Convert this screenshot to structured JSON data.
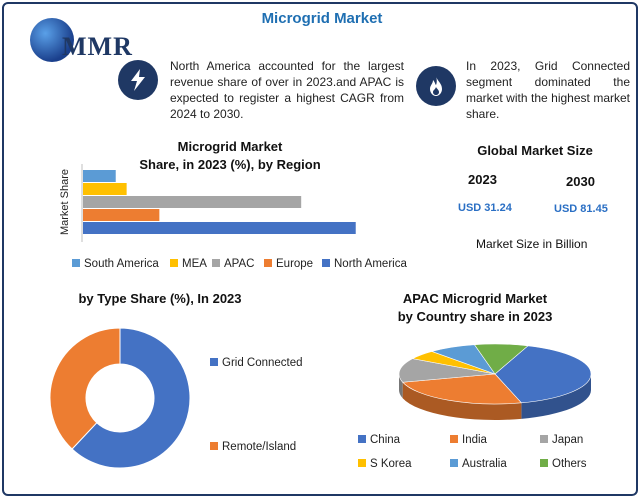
{
  "header": {
    "title": "Microgrid Market",
    "logo_text": "MMR"
  },
  "notes": {
    "left": "North America accounted for the largest revenue share of over in 2023.and APAC is expected to register a highest CAGR from 2024 to 2030.",
    "right": "In 2023, Grid Connected segment dominated the market with the highest market share.",
    "left_icon": "lightning-icon",
    "right_icon": "flame-icon"
  },
  "global_market_size": {
    "title": "Global Market Size",
    "year_1": "2023",
    "year_2": "2030",
    "value_1": "USD 31.24",
    "value_2": "USD 81.45",
    "note": "Market Size in Billion"
  },
  "colors": {
    "blue": "#4472c4",
    "orange": "#ed7d31",
    "gray": "#a5a5a5",
    "yellow": "#ffc000",
    "lightblue": "#5b9bd5",
    "green": "#70ad47",
    "navy": "#1f3864",
    "title_blue": "#1f6fb2"
  },
  "chart_data": [
    {
      "type": "bar",
      "orientation": "horizontal",
      "title": "Microgrid Market Share, in 2023 (%), by Region",
      "title_line1": "Microgrid Market",
      "title_line2": "Share, in 2023 (%), by Region",
      "ylabel": "Market Share",
      "categories": [
        "South America",
        "MEA",
        "APAC",
        "Europe",
        "North America"
      ],
      "values": [
        6,
        8,
        40,
        14,
        50
      ],
      "colors": [
        "#5b9bd5",
        "#ffc000",
        "#a5a5a5",
        "#ed7d31",
        "#4472c4"
      ],
      "xlim": [
        0,
        55
      ],
      "legend_position": "bottom",
      "legend": [
        "South America",
        "MEA",
        "APAC",
        "Europe",
        "North America"
      ]
    },
    {
      "type": "pie",
      "subtype": "donut",
      "title": "by Type Share (%), In 2023",
      "categories": [
        "Grid Connected",
        "Remote/Island"
      ],
      "values": [
        62,
        38
      ],
      "colors": [
        "#4472c4",
        "#ed7d31"
      ],
      "legend_position": "right"
    },
    {
      "type": "pie",
      "subtype": "3d",
      "title": "APAC Microgrid Market by Country share in 2023",
      "title_line1": "APAC Microgrid Market",
      "title_line2": "by Country share in 2023",
      "categories": [
        "China",
        "India",
        "Japan",
        "S Korea",
        "Australia",
        "Others"
      ],
      "values": [
        40,
        25,
        13,
        5,
        8,
        9
      ],
      "colors": [
        "#4472c4",
        "#ed7d31",
        "#a5a5a5",
        "#ffc000",
        "#5b9bd5",
        "#70ad47"
      ],
      "legend_position": "bottom"
    }
  ]
}
